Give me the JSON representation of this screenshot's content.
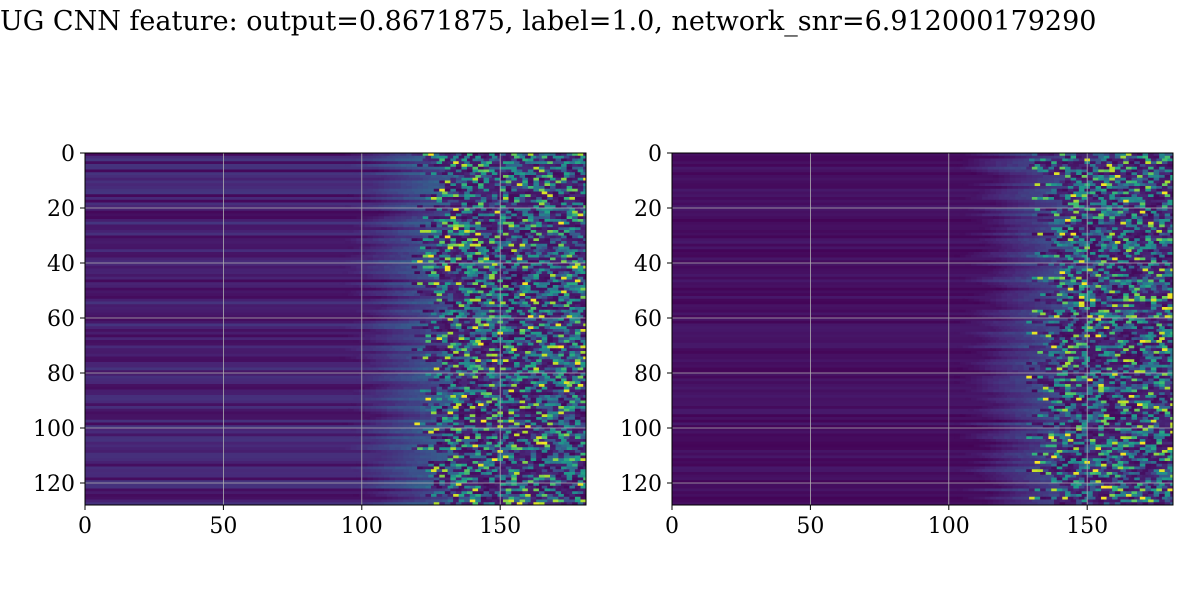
{
  "title": "UG CNN feature: output=0.8671875, label=1.0, network_snr=6.912000179290",
  "chart_data": [
    {
      "type": "heatmap",
      "title": "",
      "xlabel": "",
      "ylabel": "",
      "colormap": "viridis",
      "xlim": [
        0,
        181
      ],
      "ylim": [
        128,
        0
      ],
      "rows": 128,
      "cols": 181,
      "xticks": [
        "0",
        "50",
        "100",
        "150"
      ],
      "yticks": [
        "0",
        "20",
        "40",
        "60",
        "80",
        "100",
        "120"
      ],
      "grid": true,
      "activity_onset_column": 125
    },
    {
      "type": "heatmap",
      "title": "",
      "xlabel": "",
      "ylabel": "",
      "colormap": "viridis",
      "xlim": [
        0,
        181
      ],
      "ylim": [
        128,
        0
      ],
      "rows": 128,
      "cols": 181,
      "xticks": [
        "0",
        "50",
        "100",
        "150"
      ],
      "yticks": [
        "0",
        "20",
        "40",
        "60",
        "80",
        "100",
        "120"
      ],
      "grid": true,
      "activity_onset_column": 135
    }
  ]
}
